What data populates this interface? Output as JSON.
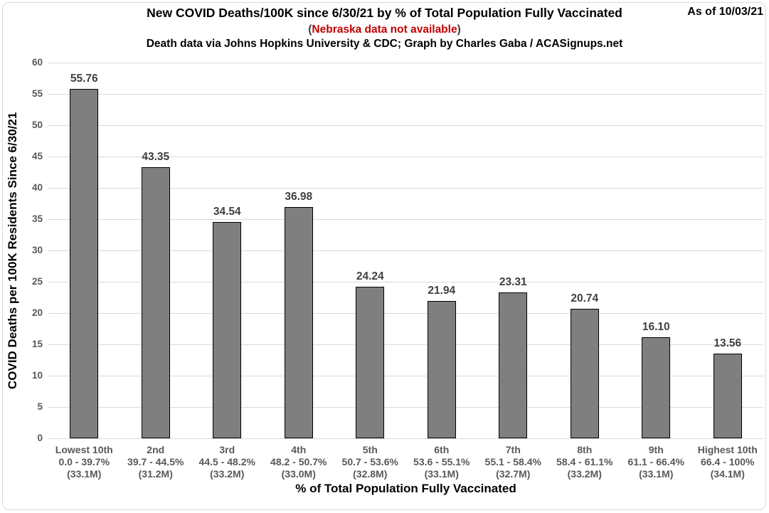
{
  "header": {
    "title": "New COVID Deaths/100K since 6/30/21 by % of Total Population Fully Vaccinated",
    "as_of": "As of 10/03/21",
    "note_open": "(",
    "note": "Nebraska data not available",
    "note_close": ")",
    "subtitle": "Death data via Johns Hopkins University & CDC; Graph by Charles Gaba / ACASignups.net"
  },
  "colors": {
    "note_red": "#c00000",
    "axis_text": "#595959",
    "value_label": "#404040",
    "gridline": "#d9d9d9",
    "bar_fill": "#7f7f7f",
    "bar_border": "#000000"
  },
  "chart_data": {
    "type": "bar",
    "title": "New COVID Deaths/100K since 6/30/21 by % of Total Population Fully Vaccinated",
    "subtitle": "Death data via Johns Hopkins University & CDC; Graph by Charles Gaba / ACASignups.net",
    "xlabel": "% of Total Population Fully Vaccinated",
    "ylabel": "COVID Deaths per 100K Residents Since 6/30/21",
    "ylim": [
      0,
      60
    ],
    "ytick_step": 5,
    "grid": true,
    "legend": "none",
    "categories": [
      {
        "decile": "Lowest 10th",
        "range": "0.0 - 39.7%",
        "population": "(33.1M)"
      },
      {
        "decile": "2nd",
        "range": "39.7 - 44.5%",
        "population": "(31.2M)"
      },
      {
        "decile": "3rd",
        "range": "44.5 - 48.2%",
        "population": "(33.2M)"
      },
      {
        "decile": "4th",
        "range": "48.2 - 50.7%",
        "population": "(33.0M)"
      },
      {
        "decile": "5th",
        "range": "50.7 - 53.6%",
        "population": "(32.8M)"
      },
      {
        "decile": "6th",
        "range": "53.6 - 55.1%",
        "population": "(33.1M)"
      },
      {
        "decile": "7th",
        "range": "55.1 - 58.4%",
        "population": "(32.7M)"
      },
      {
        "decile": "8th",
        "range": "58.4 - 61.1%",
        "population": "(33.2M)"
      },
      {
        "decile": "9th",
        "range": "61.1 - 66.4%",
        "population": "(33.1M)"
      },
      {
        "decile": "Highest 10th",
        "range": "66.4 - 100%",
        "population": "(34.1M)"
      }
    ],
    "values": [
      55.76,
      43.35,
      34.54,
      36.98,
      24.24,
      21.94,
      23.31,
      20.74,
      16.1,
      13.56
    ],
    "value_labels": [
      "55.76",
      "43.35",
      "34.54",
      "36.98",
      "24.24",
      "21.94",
      "23.31",
      "20.74",
      "16.10",
      "13.56"
    ]
  }
}
